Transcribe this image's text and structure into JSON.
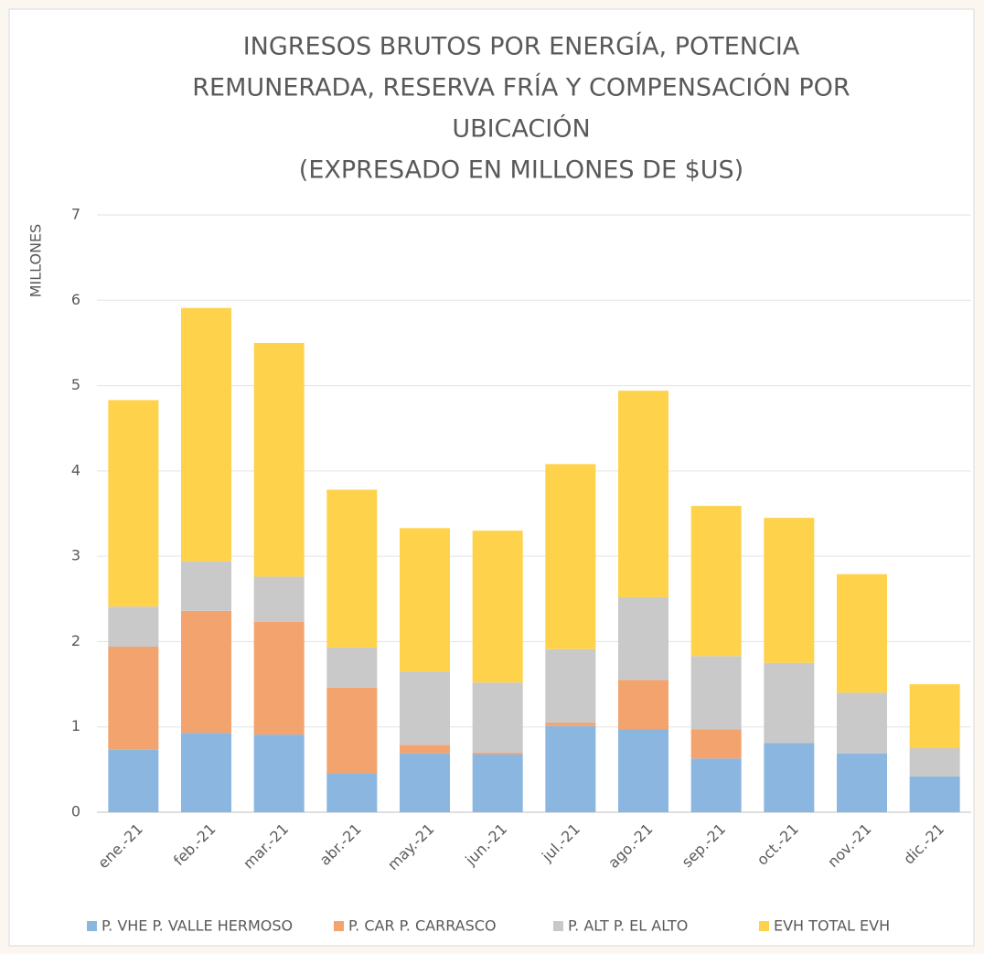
{
  "chart_data": {
    "type": "stacked_bar",
    "title": [
      "INGRESOS BRUTOS POR ENERGÍA, POTENCIA",
      "REMUNERADA, RESERVA FRÍA Y COMPENSACIÓN POR",
      "UBICACIÓN",
      "(EXPRESADO EN MILLONES DE $US)"
    ],
    "y_axis_label": "MILLONES",
    "categories": [
      "ene.-21",
      "feb.-21",
      "mar.-21",
      "abr.-21",
      "may.-21",
      "jun.-21",
      "jul.-21",
      "ago.-21",
      "sep.-21",
      "oct.-21",
      "nov.-21",
      "dic.-21"
    ],
    "series": [
      {
        "name": "P. VHE P. VALLE HERMOSO",
        "color": "#8bb6e0",
        "values": [
          0.73,
          0.93,
          0.91,
          0.46,
          0.69,
          0.68,
          1.01,
          0.97,
          0.63,
          0.81,
          0.69,
          0.42
        ]
      },
      {
        "name": "P. CAR P. CARRASCO",
        "color": "#f3a46e",
        "values": [
          1.21,
          1.43,
          1.32,
          1.0,
          0.1,
          0.02,
          0.04,
          0.58,
          0.34,
          0,
          0,
          0
        ]
      },
      {
        "name": "P. ALT P. EL ALTO",
        "color": "#c9c9c9",
        "values": [
          0.47,
          0.58,
          0.53,
          0.47,
          0.86,
          0.82,
          0.86,
          0.97,
          0.86,
          0.94,
          0.71,
          0.33
        ]
      },
      {
        "name": "EVH TOTAL EVH",
        "color": "#ffd24c",
        "values": [
          2.42,
          2.97,
          2.74,
          1.85,
          1.68,
          1.78,
          2.17,
          2.42,
          1.76,
          1.7,
          1.39,
          0.75
        ]
      }
    ],
    "ylim": [
      0,
      7
    ],
    "yticks": [
      0,
      1,
      2,
      3,
      4,
      5,
      6,
      7
    ],
    "grid": true,
    "legend": "bottom"
  }
}
